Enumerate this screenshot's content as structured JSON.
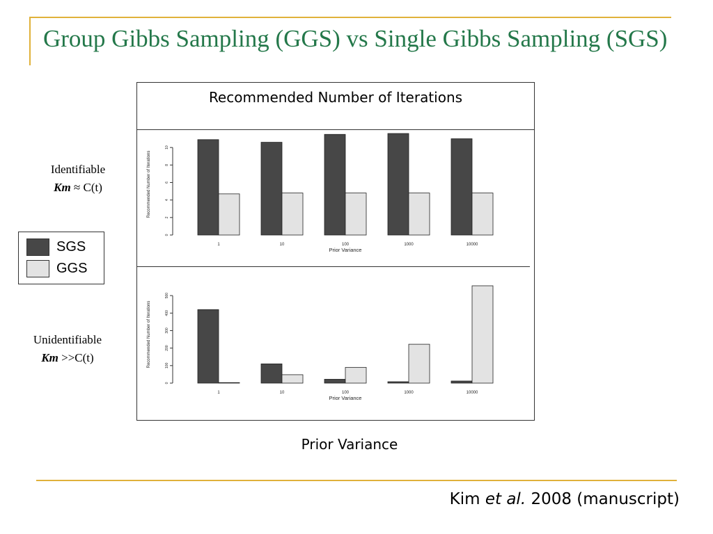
{
  "slide": {
    "title": "Group Gibbs Sampling (GGS) vs Single Gibbs Sampling (SGS)",
    "chart_header": "Recommended Number of Iterations",
    "x_caption": "Prior Variance",
    "citation": {
      "author": "Kim ",
      "etal": "et al.",
      "rest": " 2008 (manuscript)"
    }
  },
  "rows": [
    {
      "line1": "Identifiable",
      "km": "Km",
      "rel": " ≈ C(t)"
    },
    {
      "line1": "Unidentifiable",
      "km": "Km",
      "rel": " >>C(t)"
    }
  ],
  "legend": [
    {
      "label": "SGS",
      "color": "#474747"
    },
    {
      "label": "GGS",
      "color": "#e3e3e3"
    }
  ],
  "chart_data": [
    {
      "type": "bar",
      "panel": "Identifiable",
      "categories": [
        "1",
        "10",
        "100",
        "1000",
        "10000"
      ],
      "series": [
        {
          "name": "SGS",
          "values": [
            10.9,
            10.6,
            11.5,
            11.6,
            11.0
          ]
        },
        {
          "name": "GGS",
          "values": [
            4.7,
            4.8,
            4.8,
            4.8,
            4.8
          ]
        }
      ],
      "yticks": [
        0,
        2,
        4,
        6,
        8,
        10
      ],
      "ylim": [
        0,
        11.6
      ],
      "xlabel": "Prior Variance",
      "ylabel": "Recommended Number of Iterations"
    },
    {
      "type": "bar",
      "panel": "Unidentifiable",
      "categories": [
        "1",
        "10",
        "100",
        "1000",
        "10000"
      ],
      "series": [
        {
          "name": "SGS",
          "values": [
            420,
            110,
            22,
            8,
            12
          ]
        },
        {
          "name": "GGS",
          "values": [
            3,
            48,
            90,
            222,
            556
          ]
        }
      ],
      "yticks": [
        0,
        100,
        200,
        300,
        400,
        500
      ],
      "ylim": [
        0,
        556
      ],
      "xlabel": "Prior Variance",
      "ylabel": "Recommended Number of Iterations"
    }
  ]
}
